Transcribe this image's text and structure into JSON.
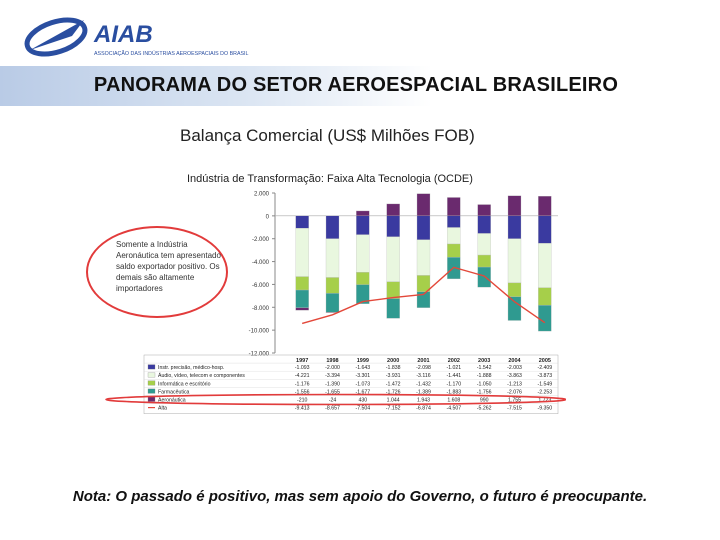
{
  "logo": {
    "name": "AIAB",
    "tagline": "ASSOCIAÇÃO DAS INDÚSTRIAS AEROESPACIAIS DO BRASIL"
  },
  "page_title": "PANORAMA DO SETOR AEROESPACIAL BRASILEIRO",
  "note": "Nota: O passado é positivo, mas sem apoio do Governo, o futuro é preocupante.",
  "callout": "Somente a Indústria Aeronáutica tem apresentado saldo exportador positivo. Os demais são altamente importadores",
  "colors": {
    "title_bar": "#b9cbe6",
    "callout": "#e23b3b",
    "series": [
      "#3a3aa0",
      "#e9f7df",
      "#a6cf4a",
      "#2f9a90",
      "#6a2a6e",
      "#e3483a"
    ]
  },
  "chart_data": {
    "type": "bar",
    "title": "Balança Comercial (US$ Milhões FOB)",
    "subtitle": "Indústria de Transformação: Faixa Alta Tecnologia (OCDE)",
    "categories": [
      "1997",
      "1998",
      "1999",
      "2000",
      "2001",
      "2002",
      "2003",
      "2004",
      "2005"
    ],
    "ylim": [
      -12000,
      2000
    ],
    "yticks": [
      2000,
      0,
      -2000,
      -4000,
      -6000,
      -8000,
      -10000,
      -12000
    ],
    "ytick_labels": [
      "2.000",
      "0",
      "-2.000",
      "-4.000",
      "-6.000",
      "-8.000",
      "-10.000",
      "-12.000"
    ],
    "grid": false,
    "series": [
      {
        "name": "Instr. precisão, médico-hosp.",
        "type": "bar",
        "values": [
          -1093,
          -2000,
          -1643,
          -1838,
          -2098,
          -1021,
          -1542,
          -2003,
          -2409
        ],
        "labels": [
          "-1.093",
          "-2.000",
          "-1.643",
          "-1.838",
          "-2.098",
          "-1.021",
          "-1.542",
          "-2.003",
          "-2.409"
        ]
      },
      {
        "name": "Áudio, vídeo, telecom e componentes",
        "type": "bar",
        "values": [
          -4221,
          -3394,
          -3301,
          -3931,
          -3116,
          -1441,
          -1888,
          -3863,
          -3873
        ],
        "labels": [
          "-4.221",
          "-3.394",
          "-3.301",
          "-3.931",
          "-3.116",
          "-1.441",
          "-1.888",
          "-3.863",
          "-3.873"
        ]
      },
      {
        "name": "Informática e escritório",
        "type": "bar",
        "values": [
          -1176,
          -1390,
          -1073,
          -1472,
          -1432,
          -1170,
          -1050,
          -1213,
          -1549
        ],
        "labels": [
          "-1.176",
          "-1.390",
          "-1.073",
          "-1.472",
          "-1.432",
          "-1.170",
          "-1.050",
          "-1.213",
          "-1.549"
        ]
      },
      {
        "name": "Farmacêutica",
        "type": "bar",
        "values": [
          -1556,
          -1655,
          -1677,
          -1726,
          -1389,
          -1883,
          -1756,
          -2076,
          -2253
        ],
        "labels": [
          "-1.556",
          "-1.655",
          "-1.677",
          "-1.726",
          "-1.389",
          "-1.883",
          "-1.756",
          "-2.076",
          "-2.253"
        ]
      },
      {
        "name": "Aeronáutica",
        "type": "bar",
        "values": [
          -210,
          -24,
          430,
          1044,
          1943,
          1608,
          990,
          1755,
          1723
        ],
        "labels": [
          "-210",
          "-24",
          "430",
          "1.044",
          "1.943",
          "1.608",
          "990",
          "1.755",
          "1.723"
        ]
      },
      {
        "name": "Alta",
        "type": "line",
        "values": [
          -9413,
          -8657,
          -7504,
          -7152,
          -6874,
          -4507,
          -5262,
          -7515,
          -9350
        ],
        "labels": [
          "-9.413",
          "-8.657",
          "-7.504",
          "-7.152",
          "-6.874",
          "-4.507",
          "-5.262",
          "-7.515",
          "-9.350"
        ]
      }
    ]
  }
}
